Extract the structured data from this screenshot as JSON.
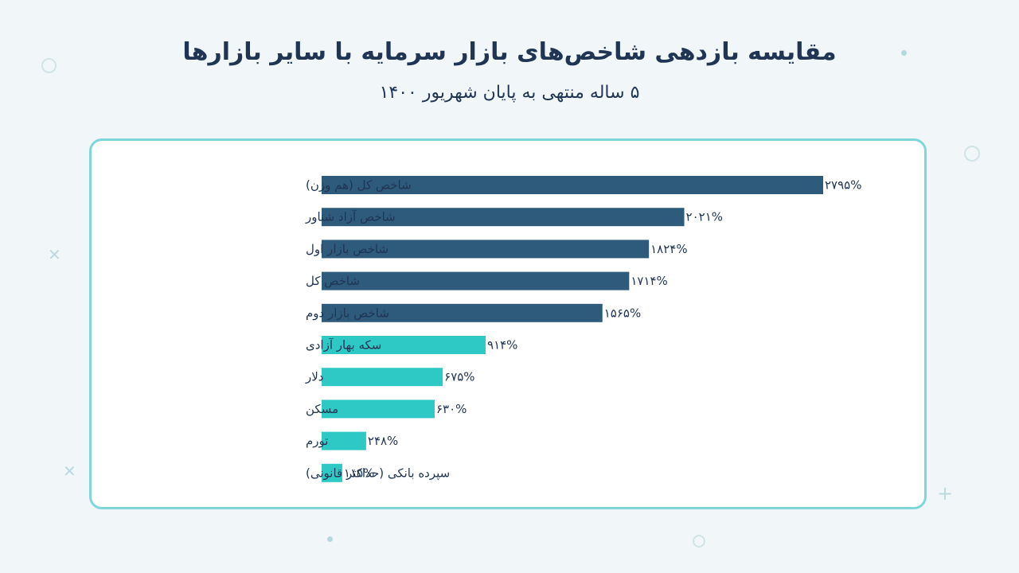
{
  "title": "مقایسه بازدهی شاخص‌های بازار سرمایه با سایر بازارها",
  "subtitle": "۵ ساله منتهی به پایان شهریور ۱۴۰۰",
  "colors": {
    "index_bars": "#2e5a7c",
    "other_bars": "#2ec9c5",
    "label_text": "#1f3553",
    "card_border": "#7fd6da"
  },
  "chart_data": {
    "type": "bar",
    "orientation": "horizontal",
    "title": "مقایسه بازدهی شاخص‌های بازار سرمایه با سایر بازارها",
    "subtitle": "۵ ساله منتهی به پایان شهریور ۱۴۰۰",
    "xlim": [
      0,
      2795
    ],
    "grid": false,
    "categories": [
      "شاخص کل (هم وزن)",
      "شاخص آزاد شناور",
      "شاخص بازار اول",
      "شاخص کل",
      "شاخص بازار دوم",
      "سکه بهار آزادی",
      "دلار",
      "مسکن",
      "تورم",
      "سپرده بانکی (حداکثر قانونی)"
    ],
    "values": [
      2795,
      2021,
      1824,
      1714,
      1565,
      914,
      675,
      630,
      248,
      115
    ],
    "value_labels": [
      "۲۷۹۵%",
      "۲۰۲۱%",
      "۱۸۲۴%",
      "۱۷۱۴%",
      "۱۵۶۵%",
      "۹۱۴%",
      "۶۷۵%",
      "۶۳۰%",
      "۲۴۸%",
      "۱۱۵%"
    ],
    "groups": [
      "index",
      "index",
      "index",
      "index",
      "index",
      "other",
      "other",
      "other",
      "other",
      "other"
    ]
  }
}
